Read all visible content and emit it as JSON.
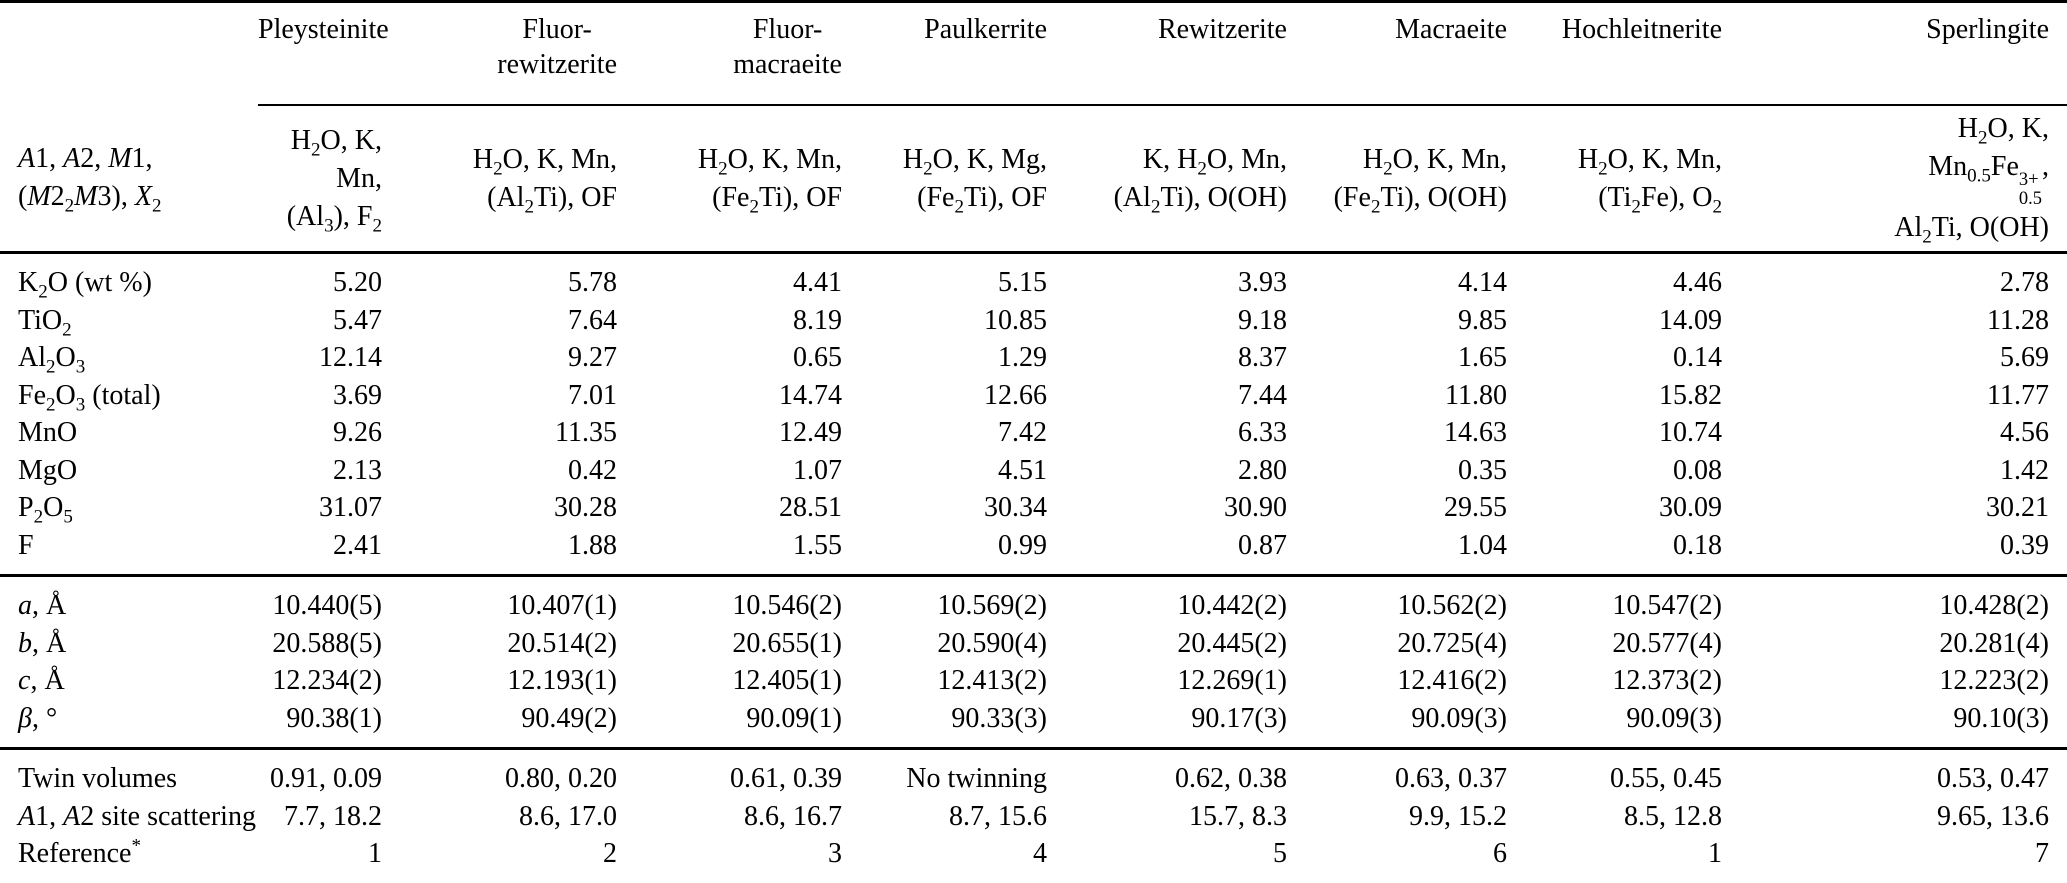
{
  "colors": {
    "text": "#000000",
    "background": "#ffffff",
    "rule": "#000000"
  },
  "header": {
    "site_label_html": "<i>A</i>1, <i>A</i>2, <i>M</i>1,<br>(<i>M</i>2<sub>2</sub><i>M</i>3), <i>X</i><sub>2</sub>"
  },
  "columns": [
    {
      "name": "Pleysteinite",
      "name_html": "Pleysteinite",
      "sites_html": "H<sub>2</sub>O, K, Mn,<br>(Al<sub>3</sub>), F<sub>2</sub>"
    },
    {
      "name": "Fluor-rewitzerite",
      "name_html": "Fluor-<br>rewitzerite",
      "sites_html": "H<sub>2</sub>O, K, Mn,<br>(Al<sub>2</sub>Ti), OF"
    },
    {
      "name": "Fluor-macraeite",
      "name_html": "Fluor-<br>macraeite",
      "sites_html": "H<sub>2</sub>O, K, Mn,<br>(Fe<sub>2</sub>Ti), OF"
    },
    {
      "name": "Paulkerrite",
      "name_html": "Paulkerrite",
      "sites_html": "H<sub>2</sub>O, K, Mg,<br>(Fe<sub>2</sub>Ti), OF"
    },
    {
      "name": "Rewitzerite",
      "name_html": "Rewitzerite",
      "sites_html": "K, H<sub>2</sub>O, Mn,<br>(Al<sub>2</sub>Ti), O(OH)"
    },
    {
      "name": "Macraeite",
      "name_html": "Macraeite",
      "sites_html": "H<sub>2</sub>O, K, Mn,<br>(Fe<sub>2</sub>Ti), O(OH)"
    },
    {
      "name": "Hochleitnerite",
      "name_html": "Hochleitnerite",
      "sites_html": "H<sub>2</sub>O, K, Mn,<br>(Ti<sub>2</sub>Fe), O<sub>2</sub>"
    },
    {
      "name": "Sperlingite",
      "name_html": "Sperlingite",
      "sites_html": "H<sub>2</sub>O, K,<br>Mn<sub>0.5</sub>Fe<span class=\"supsub\"><span>3+</span><span>0.5</span></span>,<br>Al<sub>2</sub>Ti, O(OH)"
    }
  ],
  "sections": [
    {
      "rows": [
        {
          "label": "K2O (wt %)",
          "label_html": "K<sub>2</sub>O (wt %)",
          "values": [
            "5.20",
            "5.78",
            "4.41",
            "5.15",
            "3.93",
            "4.14",
            "4.46",
            "2.78"
          ]
        },
        {
          "label": "TiO2",
          "label_html": "TiO<sub>2</sub>",
          "values": [
            "5.47",
            "7.64",
            "8.19",
            "10.85",
            "9.18",
            "9.85",
            "14.09",
            "11.28"
          ]
        },
        {
          "label": "Al2O3",
          "label_html": "Al<sub>2</sub>O<sub>3</sub>",
          "values": [
            "12.14",
            "9.27",
            "0.65",
            "1.29",
            "8.37",
            "1.65",
            "0.14",
            "5.69"
          ]
        },
        {
          "label": "Fe2O3 (total)",
          "label_html": "Fe<sub>2</sub>O<sub>3</sub> (total)",
          "values": [
            "3.69",
            "7.01",
            "14.74",
            "12.66",
            "7.44",
            "11.80",
            "15.82",
            "11.77"
          ]
        },
        {
          "label": "MnO",
          "label_html": "MnO",
          "values": [
            "9.26",
            "11.35",
            "12.49",
            "7.42",
            "6.33",
            "14.63",
            "10.74",
            "4.56"
          ]
        },
        {
          "label": "MgO",
          "label_html": "MgO",
          "values": [
            "2.13",
            "0.42",
            "1.07",
            "4.51",
            "2.80",
            "0.35",
            "0.08",
            "1.42"
          ]
        },
        {
          "label": "P2O5",
          "label_html": "P<sub>2</sub>O<sub>5</sub>",
          "values": [
            "31.07",
            "30.28",
            "28.51",
            "30.34",
            "30.90",
            "29.55",
            "30.09",
            "30.21"
          ]
        },
        {
          "label": "F",
          "label_html": "F",
          "values": [
            "2.41",
            "1.88",
            "1.55",
            "0.99",
            "0.87",
            "1.04",
            "0.18",
            "0.39"
          ]
        }
      ]
    },
    {
      "rows": [
        {
          "label": "a, Å",
          "label_html": "<i>a</i>, Å",
          "values": [
            "10.440(5)",
            "10.407(1)",
            "10.546(2)",
            "10.569(2)",
            "10.442(2)",
            "10.562(2)",
            "10.547(2)",
            "10.428(2)"
          ]
        },
        {
          "label": "b, Å",
          "label_html": "<i>b</i>, Å",
          "values": [
            "20.588(5)",
            "20.514(2)",
            "20.655(1)",
            "20.590(4)",
            "20.445(2)",
            "20.725(4)",
            "20.577(4)",
            "20.281(4)"
          ]
        },
        {
          "label": "c, Å",
          "label_html": "<i>c</i>, Å",
          "values": [
            "12.234(2)",
            "12.193(1)",
            "12.405(1)",
            "12.413(2)",
            "12.269(1)",
            "12.416(2)",
            "12.373(2)",
            "12.223(2)"
          ]
        },
        {
          "label": "β, °",
          "label_html": "<i>β</i>, °",
          "values": [
            "90.38(1)",
            "90.49(2)",
            "90.09(1)",
            "90.33(3)",
            "90.17(3)",
            "90.09(3)",
            "90.09(3)",
            "90.10(3)"
          ]
        }
      ]
    },
    {
      "rows": [
        {
          "label": "Twin volumes",
          "label_html": "Twin volumes",
          "values": [
            "0.91, 0.09",
            "0.80, 0.20",
            "0.61, 0.39",
            "No twinning",
            "0.62, 0.38",
            "0.63, 0.37",
            "0.55, 0.45",
            "0.53, 0.47"
          ]
        },
        {
          "label": "A1, A2 site scattering",
          "label_html": "<i>A</i>1, <i>A</i>2 site scattering",
          "values": [
            "7.7, 18.2",
            "8.6, 17.0",
            "8.6, 16.7",
            "8.7, 15.6",
            "15.7, 8.3",
            "9.9, 15.2",
            "8.5, 12.8",
            "9.65, 13.6"
          ]
        },
        {
          "label": "Reference*",
          "label_html": "Reference<sup>*</sup>",
          "values": [
            "1",
            "2",
            "3",
            "4",
            "5",
            "6",
            "1",
            "7"
          ]
        }
      ]
    }
  ]
}
